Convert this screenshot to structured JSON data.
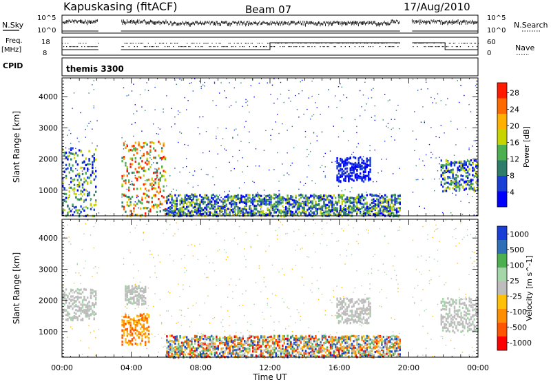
{
  "header": {
    "station": "Kapuskasing (fitACF)",
    "beam": "Beam 07",
    "date": "17/Aug/2010"
  },
  "nsky_panel": {
    "label_left": "N.Sky",
    "label_right": "N.Search",
    "ytick_top": "10^5",
    "ytick_bottom": "10^0"
  },
  "freq_panel": {
    "label_left_1": "Freq.",
    "label_left_2": "[MHz]",
    "label_right": "Nave",
    "ytick_left_top": "18",
    "ytick_left_bottom": "8",
    "ytick_right_top": "60",
    "ytick_right_bottom": "0"
  },
  "cpid": {
    "label": "CPID",
    "name": "themis 3300"
  },
  "chart_data": [
    {
      "type": "heatmap",
      "quantity": "power",
      "ylabel": "Slant Range [km]",
      "yticks": [
        "1000",
        "2000",
        "3000",
        "4000"
      ],
      "ylim": [
        180,
        4600
      ],
      "xlim_hours": [
        0,
        24
      ],
      "colorbar_label": "Power [dB]",
      "colorbar_ticks": [
        "28",
        "24",
        "20",
        "16",
        "12",
        "8",
        "4"
      ],
      "colorbar_colors": [
        "#ff1a00",
        "#ff6a00",
        "#ffb000",
        "#c8d400",
        "#4caf50",
        "#2e7d6b",
        "#1a3fd6",
        "#0000ff"
      ],
      "data_gaps_hours": [
        [
          2.1,
          3.4
        ],
        [
          19.5,
          20.2
        ]
      ],
      "echo_regions": [
        {
          "t0": 0.0,
          "t1": 2.0,
          "r0": 200,
          "r1": 2400,
          "level": "moderate"
        },
        {
          "t0": 3.4,
          "t1": 6.0,
          "r0": 200,
          "r1": 2600,
          "level": "high"
        },
        {
          "t0": 6.0,
          "t1": 19.5,
          "r0": 200,
          "r1": 900,
          "level": "moderate"
        },
        {
          "t0": 15.8,
          "t1": 17.8,
          "r0": 1300,
          "r1": 2100,
          "level": "low"
        },
        {
          "t0": 21.8,
          "t1": 24.0,
          "r0": 1000,
          "r1": 2000,
          "level": "moderate"
        }
      ]
    },
    {
      "type": "heatmap",
      "quantity": "velocity",
      "ylabel": "Slant Range [km]",
      "yticks": [
        "1000",
        "2000",
        "3000",
        "4000"
      ],
      "ylim": [
        180,
        4600
      ],
      "xlim_hours": [
        0,
        24
      ],
      "xlabel": "Time UT",
      "xticks": [
        "00:00",
        "04:00",
        "08:00",
        "12:00",
        "16:00",
        "20:00",
        "00:00"
      ],
      "colorbar_label": "Velocity [m s^-1]",
      "colorbar_ticks": [
        "1000",
        "500",
        "100",
        "25",
        "-25",
        "-100",
        "-500",
        "-1000"
      ],
      "colorbar_colors": [
        "#1a3fd6",
        "#2e6fb8",
        "#4caf50",
        "#a5d6a7",
        "#bdbdbd",
        "#ffc107",
        "#ff8f00",
        "#ff5500",
        "#ff0000"
      ],
      "data_gaps_hours": [
        [
          2.1,
          3.4
        ],
        [
          19.5,
          20.2
        ]
      ],
      "echo_regions": [
        {
          "t0": 0.0,
          "t1": 2.0,
          "r0": 1400,
          "r1": 2400,
          "level": "ground"
        },
        {
          "t0": 3.4,
          "t1": 5.0,
          "r0": 600,
          "r1": 1600,
          "level": "negative"
        },
        {
          "t0": 3.6,
          "t1": 4.8,
          "r0": 1900,
          "r1": 2500,
          "level": "ground"
        },
        {
          "t0": 6.0,
          "t1": 19.5,
          "r0": 200,
          "r1": 900,
          "level": "mixed"
        },
        {
          "t0": 15.8,
          "t1": 17.8,
          "r0": 1300,
          "r1": 2100,
          "level": "ground"
        },
        {
          "t0": 21.8,
          "t1": 24.0,
          "r0": 1000,
          "r1": 2100,
          "level": "ground"
        }
      ]
    }
  ]
}
